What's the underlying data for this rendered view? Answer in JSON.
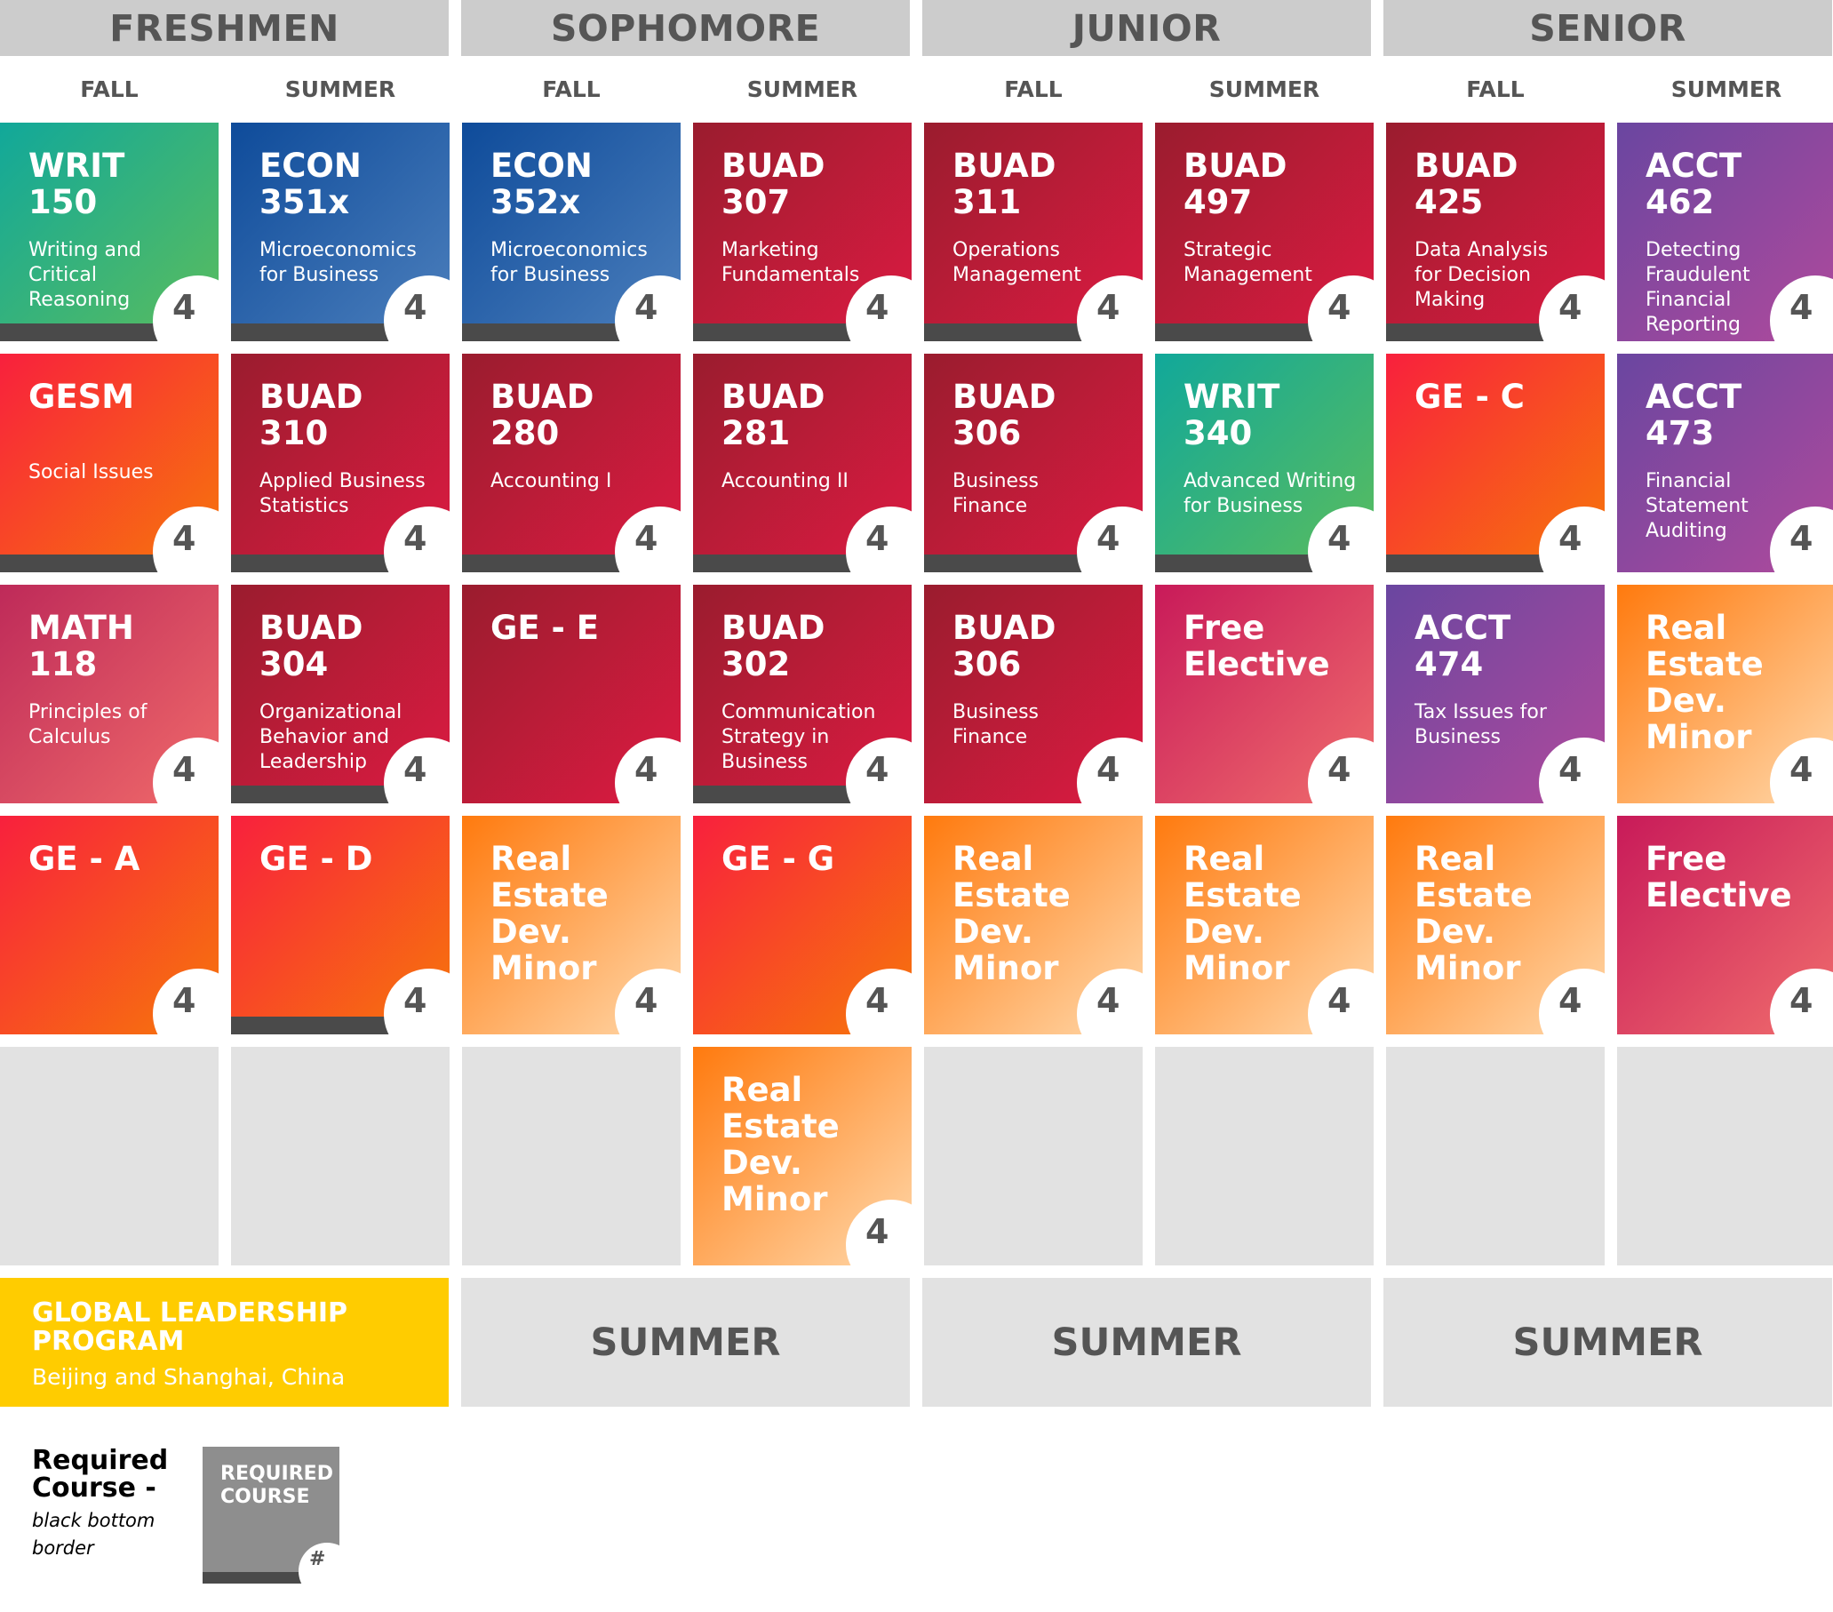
{
  "years": [
    "FRESHMEN",
    "SOPHOMORE",
    "JUNIOR",
    "SENIOR"
  ],
  "terms": [
    "FALL",
    "SUMMER",
    "FALL",
    "SUMMER",
    "FALL",
    "SUMMER",
    "FALL",
    "SUMMER"
  ],
  "colors": {
    "writ": [
      "#11a89a",
      "#5cbd5c"
    ],
    "econ": [
      "#0e4b9a",
      "#4d80bd"
    ],
    "buad": [
      "#9a1c2e",
      "#dd1b42"
    ],
    "ge": [
      "#f8203d",
      "#f7780a"
    ],
    "math": [
      "#be2a59",
      "#f06a6a"
    ],
    "acct": [
      "#6a46a0",
      "#b04a9c"
    ],
    "free": [
      "#c81a59",
      "#f06d6d"
    ],
    "real": [
      "#ff7a0e",
      "#ffd9ac"
    ],
    "glp": "#ffcc00",
    "required_border": "#4a4a4a"
  },
  "columns": [
    [
      {
        "code": "WRIT\n150",
        "title": "Writing and\nCritical\nReasoning",
        "credits": "4",
        "kind": "writ",
        "required": true
      },
      {
        "code": "GESM",
        "title": "Social Issues",
        "credits": "4",
        "kind": "ge",
        "required": true
      },
      {
        "code": "MATH\n118",
        "title": "Principles of\nCalculus",
        "credits": "4",
        "kind": "math",
        "required": false
      },
      {
        "code": "GE - A",
        "title": "",
        "credits": "4",
        "kind": "ge",
        "required": false
      },
      null
    ],
    [
      {
        "code": "ECON\n351x",
        "title": "Microeconomics\nfor Business",
        "credits": "4",
        "kind": "econ",
        "required": true
      },
      {
        "code": "BUAD\n310",
        "title": "Applied Business\nStatistics",
        "credits": "4",
        "kind": "buad",
        "required": true
      },
      {
        "code": "BUAD\n304",
        "title": "Organizational\nBehavior and\nLeadership",
        "credits": "4",
        "kind": "buad",
        "required": true
      },
      {
        "code": "GE - D",
        "title": "",
        "credits": "4",
        "kind": "ge",
        "required": true
      },
      null
    ],
    [
      {
        "code": "ECON\n352x",
        "title": "Microeconomics\nfor Business",
        "credits": "4",
        "kind": "econ",
        "required": true
      },
      {
        "code": "BUAD\n280",
        "title": "Accounting I",
        "credits": "4",
        "kind": "buad",
        "required": true
      },
      {
        "code": "GE - E",
        "title": "",
        "credits": "4",
        "kind": "buad",
        "required": false
      },
      {
        "code": "Real\nEstate\nDev.\nMinor",
        "title": "",
        "credits": "4",
        "kind": "real",
        "required": false
      },
      null
    ],
    [
      {
        "code": "BUAD\n307",
        "title": "Marketing\nFundamentals",
        "credits": "4",
        "kind": "buad",
        "required": true
      },
      {
        "code": "BUAD\n281",
        "title": "Accounting II",
        "credits": "4",
        "kind": "buad",
        "required": true
      },
      {
        "code": "BUAD\n302",
        "title": "Communication\nStrategy in\nBusiness",
        "credits": "4",
        "kind": "buad",
        "required": true
      },
      {
        "code": "GE - G",
        "title": "",
        "credits": "4",
        "kind": "ge",
        "required": false
      },
      {
        "code": "Real\nEstate\nDev.\nMinor",
        "title": "",
        "credits": "4",
        "kind": "real",
        "required": false
      }
    ],
    [
      {
        "code": "BUAD\n311",
        "title": "Operations\nManagement",
        "credits": "4",
        "kind": "buad",
        "required": true
      },
      {
        "code": "BUAD\n306",
        "title": "Business\nFinance",
        "credits": "4",
        "kind": "buad",
        "required": true
      },
      {
        "code": "BUAD\n306",
        "title": "Business\nFinance",
        "credits": "4",
        "kind": "buad",
        "required": false
      },
      {
        "code": "Real\nEstate\nDev.\nMinor",
        "title": "",
        "credits": "4",
        "kind": "real",
        "required": false
      },
      null
    ],
    [
      {
        "code": "BUAD\n497",
        "title": "Strategic\nManagement",
        "credits": "4",
        "kind": "buad",
        "required": true
      },
      {
        "code": "WRIT\n340",
        "title": "Advanced Writing\nfor Business",
        "credits": "4",
        "kind": "writ",
        "required": true
      },
      {
        "code": "Free\nElective",
        "title": "",
        "credits": "4",
        "kind": "free",
        "required": false
      },
      {
        "code": "Real\nEstate\nDev.\nMinor",
        "title": "",
        "credits": "4",
        "kind": "real",
        "required": false
      },
      null
    ],
    [
      {
        "code": "BUAD\n425",
        "title": "Data Analysis\nfor Decision\nMaking",
        "credits": "4",
        "kind": "buad",
        "required": true
      },
      {
        "code": "GE - C",
        "title": "",
        "credits": "4",
        "kind": "ge",
        "required": true
      },
      {
        "code": "ACCT\n474",
        "title": "Tax Issues for\nBusiness",
        "credits": "4",
        "kind": "acct",
        "required": false
      },
      {
        "code": "Real\nEstate\nDev.\nMinor",
        "title": "",
        "credits": "4",
        "kind": "real",
        "required": false
      },
      null
    ],
    [
      {
        "code": "ACCT\n462",
        "title": "Detecting\nFraudulent\nFinancial\nReporting",
        "credits": "4",
        "kind": "acct",
        "required": false
      },
      {
        "code": "ACCT\n473",
        "title": "Financial\nStatement\nAuditing",
        "credits": "4",
        "kind": "acct",
        "required": false
      },
      {
        "code": "Real\nEstate\nDev.\nMinor",
        "title": "",
        "credits": "4",
        "kind": "real",
        "required": false
      },
      {
        "code": "Free\nElective",
        "title": "",
        "credits": "4",
        "kind": "free",
        "required": false
      },
      null
    ]
  ],
  "glp": {
    "title": "GLOBAL LEADERSHIP\nPROGRAM",
    "subtitle": "Beijing and Shanghai, China"
  },
  "summers": [
    "SUMMER",
    "SUMMER",
    "SUMMER"
  ],
  "legend": {
    "title": "Required\nCourse -",
    "desc": "black bottom\nborder",
    "box_label": "REQUIRED\nCOURSE",
    "box_credit": "#"
  }
}
